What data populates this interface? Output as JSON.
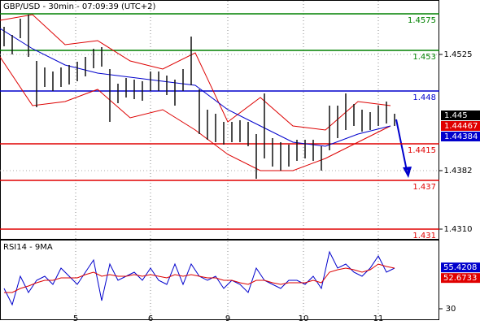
{
  "chart_data": [
    {
      "type": "hilo",
      "title": "GBP/USD - 30min - 07:09:39 (UTC+2)",
      "xlim": [
        0,
        108
      ],
      "xticks": [
        {
          "value": 18.6,
          "label": "5"
        },
        {
          "value": 37,
          "label": "6"
        },
        {
          "value": 56,
          "label": "9"
        },
        {
          "value": 74.6,
          "label": "10"
        },
        {
          "value": 93,
          "label": "11"
        }
      ],
      "ylim": [
        1.4297,
        1.4592
      ],
      "yticks": [
        1.4525,
        1.4382,
        {
          "value": 1.431,
          "label": "1.4310"
        }
      ],
      "grid": true,
      "x": [
        1,
        3,
        5,
        7,
        9,
        11,
        13,
        15,
        17,
        19,
        21,
        23,
        25,
        27,
        29,
        31,
        33,
        35,
        37,
        39,
        41,
        43,
        45,
        47,
        49,
        51,
        53,
        55,
        57,
        59,
        61,
        63,
        65,
        67,
        69,
        71,
        73,
        75,
        77,
        79,
        81,
        83,
        85,
        87,
        89,
        91,
        93,
        95,
        97
      ],
      "high": [
        1.4559,
        1.4549,
        1.4569,
        1.4574,
        1.4517,
        1.4509,
        1.4504,
        1.4509,
        1.4512,
        1.4516,
        1.4522,
        1.4532,
        1.4534,
        1.4507,
        1.4489,
        1.4496,
        1.4494,
        1.4492,
        1.4504,
        1.4504,
        1.4499,
        1.4494,
        1.4507,
        1.4547,
        1.4482,
        1.4457,
        1.4452,
        1.4442,
        1.4442,
        1.4444,
        1.4442,
        1.4427,
        1.4477,
        1.4422,
        1.4417,
        1.4414,
        1.442,
        1.442,
        1.442,
        1.4412,
        1.4462,
        1.4462,
        1.4477,
        1.4464,
        1.4457,
        1.4454,
        1.4462,
        1.4467,
        1.4452
      ],
      "low": [
        1.4535,
        1.4525,
        1.4545,
        1.4522,
        1.446,
        1.4485,
        1.448,
        1.4485,
        1.4488,
        1.4492,
        1.4498,
        1.4508,
        1.451,
        1.4442,
        1.4465,
        1.4472,
        1.447,
        1.4468,
        1.448,
        1.448,
        1.4475,
        1.4462,
        1.448,
        1.4487,
        1.4427,
        1.442,
        1.4417,
        1.4414,
        1.4417,
        1.4417,
        1.4412,
        1.4372,
        1.4397,
        1.4387,
        1.4382,
        1.4387,
        1.4394,
        1.4397,
        1.4394,
        1.4382,
        1.4407,
        1.4422,
        1.4432,
        1.4437,
        1.443,
        1.4432,
        1.4437,
        1.444,
        1.4437
      ],
      "bar_color": "#111111",
      "bands": {
        "x": [
          0,
          8,
          16,
          24,
          32,
          40,
          48,
          56,
          64,
          72,
          80,
          88,
          96
        ],
        "upper": [
          1.4567,
          1.4574,
          1.4537,
          1.4542,
          1.4517,
          1.4507,
          1.4527,
          1.4442,
          1.4472,
          1.4437,
          1.4432,
          1.4467,
          1.4462
        ],
        "lower": [
          1.4522,
          1.4462,
          1.4467,
          1.4482,
          1.4447,
          1.4457,
          1.4432,
          1.4402,
          1.4382,
          1.4382,
          1.4397,
          1.4417,
          1.4437
        ],
        "ma": [
          1.4557,
          1.4532,
          1.4512,
          1.4502,
          1.4497,
          1.4492,
          1.4487,
          1.4457,
          1.4437,
          1.4417,
          1.4412,
          1.4427,
          1.4437
        ],
        "band_color": "#dd0000",
        "ma_color": "#0000cc"
      },
      "levels": [
        {
          "value": 1.4575,
          "color": "#008000"
        },
        {
          "value": 1.453,
          "color": "#008000"
        },
        {
          "value": 1.448,
          "color": "#0000cc"
        },
        {
          "value": 1.4415,
          "color": "#e00000"
        },
        {
          "value": 1.437,
          "color": "#e00000"
        },
        {
          "value": 1.431,
          "color": "#e00000"
        }
      ],
      "price_tags": [
        {
          "value": 1.445,
          "color": "#000000"
        },
        {
          "value": 1.44467,
          "color": "#e00000"
        },
        {
          "value": 1.44384,
          "color": "#0000cc"
        }
      ]
    },
    {
      "type": "line",
      "title": "RSI14 - 9MA",
      "xlim": [
        0,
        108
      ],
      "ylim": [
        22.5,
        72.5
      ],
      "yticks": [
        30
      ],
      "x": [
        1,
        3,
        5,
        7,
        9,
        11,
        13,
        15,
        17,
        19,
        21,
        23,
        25,
        27,
        29,
        31,
        33,
        35,
        37,
        39,
        41,
        43,
        45,
        47,
        49,
        51,
        53,
        55,
        57,
        59,
        61,
        63,
        65,
        67,
        69,
        71,
        73,
        75,
        77,
        79,
        81,
        83,
        85,
        87,
        89,
        91,
        93,
        95,
        97
      ],
      "series": [
        {
          "color": "#0000cc",
          "values": [
            42.5,
            32.5,
            50,
            40,
            47.5,
            50,
            45,
            55,
            50,
            45,
            52.5,
            60,
            35,
            57.5,
            47.5,
            50,
            52.5,
            47.5,
            55,
            47.5,
            45,
            57.5,
            45,
            57.5,
            50,
            47.5,
            50,
            42.5,
            47.5,
            45,
            40,
            55,
            47.5,
            45,
            42.5,
            47.5,
            47.5,
            45,
            50,
            42.5,
            65,
            55,
            57.5,
            52.5,
            50,
            55,
            62.5,
            52.5,
            55
          ]
        },
        {
          "color": "#dd0000",
          "values": [
            40,
            40,
            42.5,
            44,
            46,
            47.5,
            47.5,
            49,
            49,
            49,
            51,
            52.5,
            50,
            51,
            50,
            50,
            51,
            50,
            51,
            50,
            49,
            51,
            50,
            51,
            50,
            49,
            49,
            47.5,
            47.5,
            46,
            45,
            47.5,
            47.5,
            46,
            45,
            46,
            46,
            46,
            47.5,
            46,
            52.5,
            54,
            55,
            54,
            52.5,
            54,
            57.5,
            56,
            55
          ]
        }
      ],
      "last_values": [
        {
          "value": 55.4208,
          "color": "#0000cc"
        },
        {
          "value": 52.6733,
          "color": "#e00000"
        }
      ]
    }
  ]
}
